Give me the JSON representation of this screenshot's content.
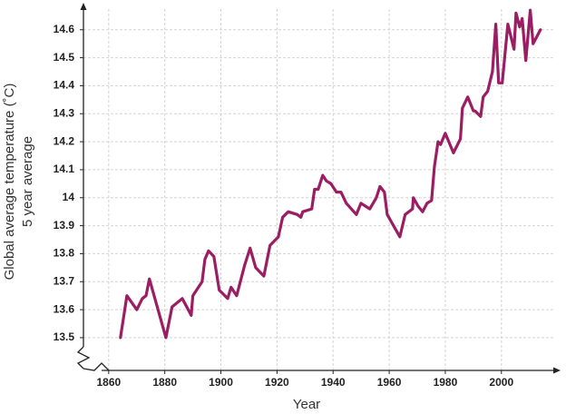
{
  "chart_data": {
    "type": "line",
    "x_label": "Year",
    "y_label": [
      "Global average temperature (˚C)",
      "5 year average"
    ],
    "xlim": [
      1851,
      2018.5
    ],
    "ylim": [
      13.383,
      14.69
    ],
    "xticks": [
      1860,
      1880,
      1900,
      1920,
      1940,
      1960,
      1980,
      2000
    ],
    "yticks": [
      13.5,
      13.6,
      13.7,
      13.8,
      13.9,
      14.0,
      14.1,
      14.2,
      14.3,
      14.4,
      14.5,
      14.6
    ],
    "grid": true,
    "series": [
      {
        "color": "#9b1d62",
        "x": [
          1864.2,
          1866.5,
          1870,
          1872,
          1873.3,
          1874.5,
          1880.4,
          1882.6,
          1886.2,
          1889.4,
          1890,
          1893.3,
          1894.3,
          1895.6,
          1897.5,
          1899.4,
          1902.4,
          1903.6,
          1905.6,
          1908.5,
          1910.4,
          1912.4,
          1915.3,
          1917.5,
          1920.5,
          1922,
          1924,
          1927.2,
          1928.5,
          1929.2,
          1932.4,
          1933.4,
          1934.7,
          1936.3,
          1937.6,
          1939.2,
          1941.2,
          1942.8,
          1944.7,
          1948.3,
          1949.9,
          1953.1,
          1955.4,
          1956.7,
          1958.3,
          1959.3,
          1963.8,
          1965.7,
          1968.3,
          1968.6,
          1970.3,
          1971.9,
          1973.5,
          1975.1,
          1976.1,
          1977.4,
          1978.3,
          1980,
          1982.9,
          1985.4,
          1986.1,
          1988,
          1990,
          1990.6,
          1992.6,
          1993.5,
          1995.1,
          1996.8,
          1998,
          1999,
          2000.3,
          2002.3,
          2004.5,
          2005.2,
          2006.5,
          2007.4,
          2008.7,
          2010.3,
          2011.3,
          2013.9
        ],
        "values": [
          13.5,
          13.65,
          13.6,
          13.64,
          13.65,
          13.71,
          13.5,
          13.61,
          13.64,
          13.58,
          13.65,
          13.7,
          13.78,
          13.81,
          13.79,
          13.67,
          13.64,
          13.68,
          13.65,
          13.76,
          13.82,
          13.75,
          13.72,
          13.83,
          13.86,
          13.93,
          13.95,
          13.94,
          13.93,
          13.95,
          13.96,
          14.03,
          14.03,
          14.08,
          14.06,
          14.05,
          14.02,
          14.02,
          13.98,
          13.94,
          13.98,
          13.96,
          14.0,
          14.04,
          14.02,
          13.94,
          13.86,
          13.94,
          13.96,
          14.0,
          13.97,
          13.95,
          13.98,
          13.99,
          14.11,
          14.2,
          14.19,
          14.23,
          14.16,
          14.21,
          14.32,
          14.36,
          14.31,
          14.31,
          14.29,
          14.36,
          14.38,
          14.45,
          14.62,
          14.41,
          14.41,
          14.62,
          14.53,
          14.66,
          14.61,
          14.64,
          14.49,
          14.67,
          14.55,
          14.6
        ]
      }
    ]
  }
}
